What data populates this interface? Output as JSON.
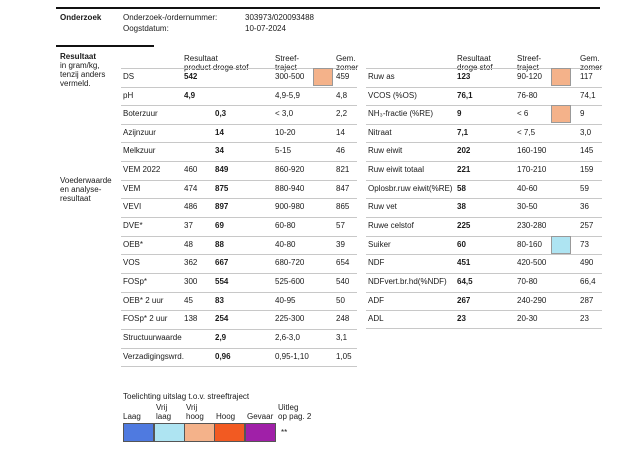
{
  "header": {
    "title": "Onderzoek",
    "order_label": "Onderzoek-/ordernummer:",
    "order_value": "303973/020093488",
    "date_label": "Oogstdatum:",
    "date_value": "10-07-2024"
  },
  "section1_label": [
    "Resultaat",
    "in gram/kg,",
    "tenzij anders",
    "vermeld."
  ],
  "section2_label": [
    "Voederwaarde",
    "en analyse-",
    "resultaat"
  ],
  "left_headers": {
    "col1": [
      "Resultaat",
      "product droge stof"
    ],
    "col2": [
      "Streef-",
      "traject"
    ],
    "col3": [
      "Gem.",
      "zomer"
    ]
  },
  "right_headers": {
    "col1": [
      "Resultaat",
      "droge stof"
    ],
    "col2": [
      "Streef-",
      "traject"
    ],
    "col3": [
      "Gem.",
      "zomer"
    ]
  },
  "left_rows": [
    {
      "name": "DS",
      "product": "542",
      "ds": "",
      "range": "300-500",
      "avg": "459",
      "indicator": "high"
    },
    {
      "name": "pH",
      "product": "4,9",
      "ds": "",
      "range": "4,9-5,9",
      "avg": "4,8",
      "indicator": ""
    },
    {
      "name": "Boterzuur",
      "product": "",
      "ds": "0,3",
      "range": "< 3,0",
      "avg": "2,2",
      "indicator": ""
    },
    {
      "name": "Azijnzuur",
      "product": "",
      "ds": "14",
      "range": "10-20",
      "avg": "14",
      "indicator": ""
    },
    {
      "name": "Melkzuur",
      "product": "",
      "ds": "34",
      "range": "5-15",
      "avg": "46",
      "indicator": ""
    },
    {
      "name": "VEM 2022",
      "product": "460",
      "ds": "849",
      "range": "860-920",
      "avg": "821",
      "indicator": ""
    },
    {
      "name": "VEM",
      "product": "474",
      "ds": "875",
      "range": "880-940",
      "avg": "847",
      "indicator": ""
    },
    {
      "name": "VEVI",
      "product": "486",
      "ds": "897",
      "range": "900-980",
      "avg": "865",
      "indicator": ""
    },
    {
      "name": "DVE*",
      "product": "37",
      "ds": "69",
      "range": "60-80",
      "avg": "57",
      "indicator": ""
    },
    {
      "name": "OEB*",
      "product": "48",
      "ds": "88",
      "range": "40-80",
      "avg": "39",
      "indicator": ""
    },
    {
      "name": "VOS",
      "product": "362",
      "ds": "667",
      "range": "680-720",
      "avg": "654",
      "indicator": ""
    },
    {
      "name": "FOSp*",
      "product": "300",
      "ds": "554",
      "range": "525-600",
      "avg": "540",
      "indicator": ""
    },
    {
      "name": "OEB* 2 uur",
      "product": "45",
      "ds": "83",
      "range": "40-95",
      "avg": "50",
      "indicator": ""
    },
    {
      "name": "FOSp* 2 uur",
      "product": "138",
      "ds": "254",
      "range": "225-300",
      "avg": "248",
      "indicator": ""
    },
    {
      "name": "Structuurwaarde",
      "product": "",
      "ds": "2,9",
      "range": "2,6-3,0",
      "avg": "3,1",
      "indicator": ""
    },
    {
      "name": "Verzadigingswrd.",
      "product": "",
      "ds": "0,96",
      "range": "0,95-1,10",
      "avg": "1,05",
      "indicator": ""
    }
  ],
  "right_rows": [
    {
      "name": "Ruw as",
      "ds": "123",
      "range": "90-120",
      "avg": "117",
      "indicator": "high"
    },
    {
      "name": "VCOS (%OS)",
      "ds": "76,1",
      "range": "76-80",
      "avg": "74,1",
      "indicator": ""
    },
    {
      "name": "NH₃-fractie (%RE)",
      "ds": "9",
      "range": "< 6",
      "avg": "9",
      "indicator": "high"
    },
    {
      "name": "Nitraat",
      "ds": "7,1",
      "range": "< 7,5",
      "avg": "3,0",
      "indicator": ""
    },
    {
      "name": "Ruw eiwit",
      "ds": "202",
      "range": "160-190",
      "avg": "145",
      "indicator": ""
    },
    {
      "name": "Ruw eiwit totaal",
      "ds": "221",
      "range": "170-210",
      "avg": "159",
      "indicator": ""
    },
    {
      "name": "Oplosbr.ruw eiwit(%RE)",
      "ds": "58",
      "range": "40-60",
      "avg": "59",
      "indicator": ""
    },
    {
      "name": "Ruw vet",
      "ds": "38",
      "range": "30-50",
      "avg": "36",
      "indicator": ""
    },
    {
      "name": "Ruwe celstof",
      "ds": "225",
      "range": "230-280",
      "avg": "257",
      "indicator": ""
    },
    {
      "name": "Suiker",
      "ds": "60",
      "range": "80-160",
      "avg": "73",
      "indicator": "low"
    },
    {
      "name": "NDF",
      "ds": "451",
      "range": "420-500",
      "avg": "490",
      "indicator": ""
    },
    {
      "name": "NDFvert.br.hd(%NDF)",
      "ds": "64,5",
      "range": "70-80",
      "avg": "66,4",
      "indicator": ""
    },
    {
      "name": "ADF",
      "ds": "267",
      "range": "240-290",
      "avg": "287",
      "indicator": ""
    },
    {
      "name": "ADL",
      "ds": "23",
      "range": "20-30",
      "avg": "23",
      "indicator": ""
    }
  ],
  "legend": {
    "title": "Toelichting uitslag t.o.v. streeftraject",
    "items": [
      {
        "label": [
          "",
          "Laag"
        ],
        "color": "#4f7ae0"
      },
      {
        "label": [
          "Vrij",
          "laag"
        ],
        "color": "#aee4f2"
      },
      {
        "label": [
          "Vrij",
          "hoog"
        ],
        "color": "#f4b28a"
      },
      {
        "label": [
          "",
          "Hoog"
        ],
        "color": "#f25a22"
      },
      {
        "label": [
          "",
          "Gevaar"
        ],
        "color": "#a020a8"
      }
    ],
    "note": [
      "Uitleg",
      "op pag. 2"
    ],
    "stars": "**"
  }
}
